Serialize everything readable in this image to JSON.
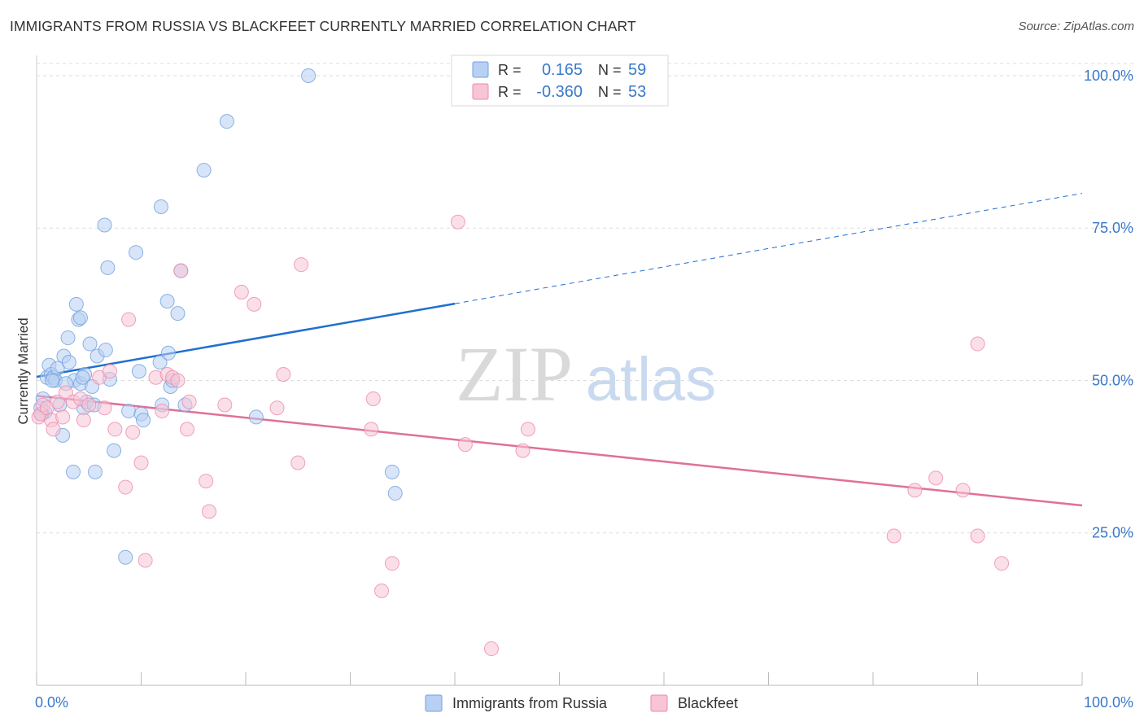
{
  "title": "IMMIGRANTS FROM RUSSIA VS BLACKFEET CURRENTLY MARRIED CORRELATION CHART",
  "source": "Source: ZipAtlas.com",
  "watermark": {
    "zip": "ZIP",
    "atlas": "atlas"
  },
  "colors": {
    "blue": "#6fa0e0",
    "blue_fill": "#b8d0f3",
    "blue_line": "#1f6fd0",
    "pink": "#ec8aaa",
    "pink_fill": "#f7c5d5",
    "pink_line": "#e0709a",
    "tick_text": "#3a78c9",
    "grid": "#dddddd"
  },
  "legend_top": {
    "rows": [
      {
        "r_label": "R =",
        "r_value": "0.165",
        "n_label": "N =",
        "n_value": "59"
      },
      {
        "r_label": "R =",
        "r_value": "-0.360",
        "n_label": "N =",
        "n_value": "53"
      }
    ]
  },
  "legend_bottom": {
    "items": [
      "Immigrants from Russia",
      "Blackfeet"
    ]
  },
  "chart_data": {
    "type": "scatter",
    "title": "IMMIGRANTS FROM RUSSIA VS BLACKFEET CURRENTLY MARRIED CORRELATION CHART",
    "xlabel": "",
    "ylabel": "Currently Married",
    "xlim": [
      0,
      100
    ],
    "ylim": [
      0,
      102
    ],
    "x_tick_labels": [
      "0.0%",
      "100.0%"
    ],
    "y_ticks": [
      25,
      50,
      75,
      100
    ],
    "y_tick_labels": [
      "25.0%",
      "50.0%",
      "75.0%",
      "100.0%"
    ],
    "grid": true,
    "series": [
      {
        "name": "Immigrants from Russia",
        "r": 0.165,
        "n": 59,
        "trend": {
          "x0": 0,
          "y0": 50.6,
          "x1": 40,
          "y1": 62.6,
          "dash_x1": 100,
          "dash_y1": 80.7
        },
        "points": [
          [
            0.4,
            45.5
          ],
          [
            0.6,
            47.0
          ],
          [
            0.8,
            44.8
          ],
          [
            1.0,
            50.5
          ],
          [
            1.2,
            52.5
          ],
          [
            1.4,
            51.0
          ],
          [
            1.6,
            50.5
          ],
          [
            1.8,
            50.0
          ],
          [
            2.0,
            52.0
          ],
          [
            2.2,
            46.0
          ],
          [
            2.5,
            41.0
          ],
          [
            2.6,
            54.0
          ],
          [
            3.0,
            57.0
          ],
          [
            3.1,
            53.0
          ],
          [
            3.5,
            35.0
          ],
          [
            3.6,
            50.0
          ],
          [
            3.8,
            62.5
          ],
          [
            4.0,
            60.0
          ],
          [
            4.2,
            60.3
          ],
          [
            4.2,
            49.5
          ],
          [
            4.5,
            45.5
          ],
          [
            4.6,
            51.0
          ],
          [
            4.8,
            46.5
          ],
          [
            5.1,
            56.0
          ],
          [
            5.3,
            49.0
          ],
          [
            5.5,
            46.0
          ],
          [
            5.6,
            35.0
          ],
          [
            5.8,
            54.0
          ],
          [
            6.5,
            75.5
          ],
          [
            6.6,
            55.0
          ],
          [
            6.8,
            68.5
          ],
          [
            7.4,
            38.5
          ],
          [
            8.5,
            21.0
          ],
          [
            8.8,
            45.0
          ],
          [
            9.5,
            71.0
          ],
          [
            9.8,
            51.5
          ],
          [
            10.0,
            44.5
          ],
          [
            10.2,
            43.5
          ],
          [
            11.8,
            53.0
          ],
          [
            11.9,
            78.5
          ],
          [
            12.0,
            46.0
          ],
          [
            12.5,
            63.0
          ],
          [
            12.6,
            54.5
          ],
          [
            12.8,
            49.0
          ],
          [
            13.0,
            50.0
          ],
          [
            13.5,
            61.0
          ],
          [
            13.8,
            68.0
          ],
          [
            14.2,
            46.0
          ],
          [
            16.0,
            84.5
          ],
          [
            18.2,
            92.5
          ],
          [
            21.0,
            44.0
          ],
          [
            26.0,
            100.0
          ],
          [
            34.0,
            35.0
          ],
          [
            34.3,
            31.5
          ],
          [
            1.5,
            50.0
          ],
          [
            2.8,
            49.5
          ],
          [
            4.4,
            50.5
          ],
          [
            7.0,
            50.2
          ],
          [
            0.5,
            44.5
          ]
        ]
      },
      {
        "name": "Blackfeet",
        "r": -0.36,
        "n": 53,
        "trend": {
          "x0": 0,
          "y0": 47.5,
          "x1": 100,
          "y1": 29.5
        },
        "points": [
          [
            0.2,
            44.0
          ],
          [
            0.4,
            44.5
          ],
          [
            0.6,
            46.0
          ],
          [
            1.0,
            45.5
          ],
          [
            1.4,
            43.5
          ],
          [
            1.6,
            42.0
          ],
          [
            2.0,
            46.5
          ],
          [
            2.5,
            44.0
          ],
          [
            2.8,
            48.0
          ],
          [
            3.5,
            46.5
          ],
          [
            4.2,
            47.0
          ],
          [
            4.5,
            43.5
          ],
          [
            5.0,
            46.0
          ],
          [
            6.0,
            50.5
          ],
          [
            6.5,
            45.5
          ],
          [
            7.0,
            51.5
          ],
          [
            7.5,
            42.0
          ],
          [
            8.5,
            32.5
          ],
          [
            8.8,
            60.0
          ],
          [
            9.2,
            41.5
          ],
          [
            10.0,
            36.5
          ],
          [
            10.4,
            20.5
          ],
          [
            11.4,
            50.5
          ],
          [
            12.0,
            45.0
          ],
          [
            12.5,
            51.0
          ],
          [
            13.0,
            50.5
          ],
          [
            13.5,
            50.0
          ],
          [
            13.8,
            68.0
          ],
          [
            14.4,
            42.0
          ],
          [
            14.6,
            46.5
          ],
          [
            16.2,
            33.5
          ],
          [
            16.5,
            28.5
          ],
          [
            18.0,
            46.0
          ],
          [
            19.6,
            64.5
          ],
          [
            20.8,
            62.5
          ],
          [
            23.0,
            45.5
          ],
          [
            23.6,
            51.0
          ],
          [
            25.0,
            36.5
          ],
          [
            25.3,
            69.0
          ],
          [
            32.0,
            42.0
          ],
          [
            32.2,
            47.0
          ],
          [
            33.0,
            15.5
          ],
          [
            34.0,
            20.0
          ],
          [
            40.3,
            76.0
          ],
          [
            41.0,
            39.5
          ],
          [
            43.5,
            6.0
          ],
          [
            46.5,
            38.5
          ],
          [
            47.0,
            42.0
          ],
          [
            82.0,
            24.5
          ],
          [
            84.0,
            32.0
          ],
          [
            86.0,
            34.0
          ],
          [
            88.6,
            32.0
          ],
          [
            90.0,
            24.5
          ],
          [
            90.0,
            56.0
          ],
          [
            92.3,
            20.0
          ]
        ]
      }
    ]
  }
}
